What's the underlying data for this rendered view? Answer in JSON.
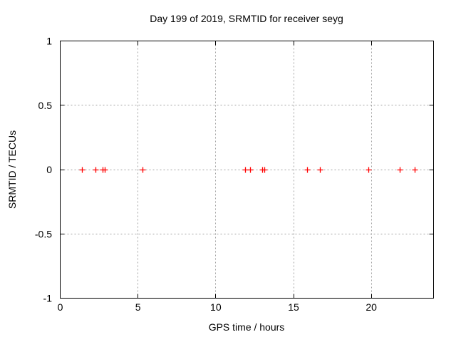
{
  "window": {
    "background": "#ffffff"
  },
  "chart_data": {
    "type": "scatter",
    "title": "Day 199 of 2019, SRMTID for receiver seyg",
    "xlabel": "GPS time / hours",
    "ylabel": "SRMTID / TECUs",
    "xlim": [
      0,
      24
    ],
    "ylim": [
      -1,
      1
    ],
    "xticks": [
      0,
      5,
      10,
      15,
      20
    ],
    "xtick_labels": [
      "0",
      "5",
      "10",
      "15",
      "20"
    ],
    "yticks": [
      1,
      0.5,
      0,
      -0.5,
      -1
    ],
    "ytick_labels": [
      "1",
      "0.5",
      "0",
      "-0.5",
      "-1"
    ],
    "grid": true,
    "grid_style": "dotted",
    "legend": "none",
    "series": [
      {
        "name": "SRMTID",
        "marker": "plus",
        "color": "#ff0000",
        "x": [
          1.39,
          2.26,
          2.72,
          2.87,
          5.27,
          11.87,
          12.21,
          12.98,
          13.13,
          15.88,
          16.69,
          19.79,
          21.84,
          22.8
        ],
        "y": [
          0,
          0,
          0,
          0,
          0,
          0,
          0,
          0,
          0,
          0,
          0,
          0,
          0,
          0
        ]
      }
    ],
    "colors": {
      "border": "#000000",
      "grid": "#a0a0a0",
      "marker": "#ff0000",
      "text": "#000000"
    }
  }
}
